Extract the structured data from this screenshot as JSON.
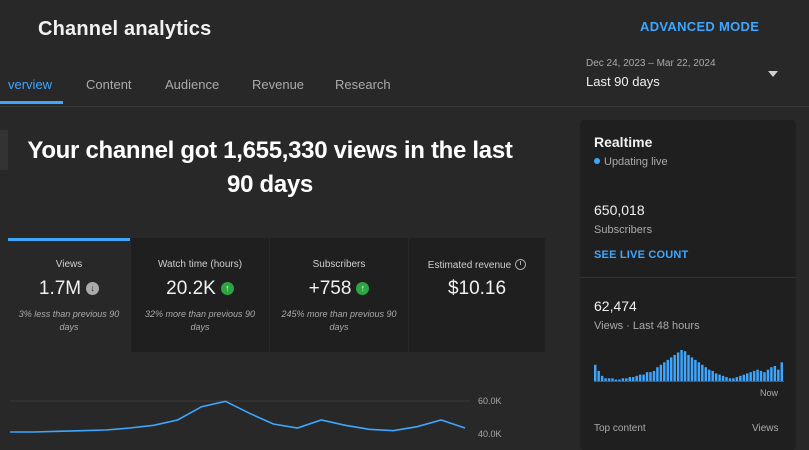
{
  "header": {
    "title": "Channel analytics",
    "advanced_mode": "ADVANCED MODE",
    "date_range": "Dec 24, 2023 – Mar 22, 2024",
    "date_period": "Last 90 days"
  },
  "tabs": [
    {
      "label": "verview",
      "active": true
    },
    {
      "label": "Content",
      "active": false
    },
    {
      "label": "Audience",
      "active": false
    },
    {
      "label": "Revenue",
      "active": false
    },
    {
      "label": "Research",
      "active": false
    }
  ],
  "overview": {
    "headline_line1": "Your channel got 1,655,330 views in the last",
    "headline_line2": "90 days"
  },
  "cards": [
    {
      "label": "Views",
      "value": "1.7M",
      "trend": "down",
      "note_line1": "3% less than previous 90",
      "note_line2": "days"
    },
    {
      "label": "Watch time (hours)",
      "value": "20.2K",
      "trend": "up",
      "note_line1": "32% more than previous 90",
      "note_line2": "days"
    },
    {
      "label": "Subscribers",
      "value": "+758",
      "trend": "up",
      "note_line1": "245% more than previous 90",
      "note_line2": "days"
    },
    {
      "label": "Estimated revenue",
      "value": "$10.16",
      "trend": "none",
      "note_line1": "",
      "note_line2": ""
    }
  ],
  "chart": {
    "y_ticks": [
      "60.0K",
      "40.0K"
    ]
  },
  "chart_data": {
    "type": "line",
    "title": "",
    "ylabel": "",
    "y_ticks": [
      "60.0K",
      "40.0K"
    ],
    "series": [
      {
        "values": [
          12,
          12,
          13,
          14,
          15,
          18,
          22,
          30,
          50,
          58,
          40,
          24,
          18,
          30,
          22,
          16,
          14,
          20,
          30,
          18
        ]
      }
    ]
  },
  "realtime": {
    "title": "Realtime",
    "status": "Updating live",
    "subscribers_value": "650,018",
    "subscribers_label": "Subscribers",
    "live_count": "SEE LIVE COUNT",
    "views_value": "62,474",
    "views_label": "Views · Last 48 hours",
    "now_label": "Now",
    "top_content": "Top content",
    "top_views": "Views",
    "bars": [
      14,
      9,
      5,
      3,
      3,
      3,
      2,
      2,
      3,
      3,
      4,
      4,
      5,
      6,
      6,
      8,
      8,
      9,
      12,
      14,
      16,
      18,
      20,
      22,
      24,
      26,
      25,
      22,
      20,
      18,
      16,
      14,
      12,
      10,
      9,
      7,
      6,
      5,
      4,
      3,
      3,
      4,
      5,
      6,
      7,
      8,
      9,
      10,
      9,
      8,
      10,
      12,
      13,
      10,
      16
    ]
  },
  "colors": {
    "accent": "#3ea6ff",
    "up": "#2ba640",
    "background": "#282828",
    "card": "#1f1f1f"
  }
}
